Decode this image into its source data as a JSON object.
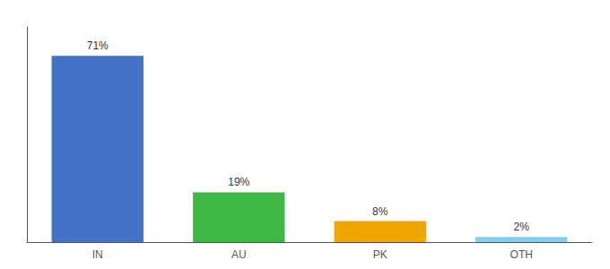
{
  "chart_data": {
    "type": "bar",
    "categories": [
      "IN",
      "AU",
      "PK",
      "OTH"
    ],
    "values": [
      71,
      19,
      8,
      2
    ],
    "value_labels": [
      "71%",
      "19%",
      "8%",
      "2%"
    ],
    "colors": [
      "#4472c4",
      "#3cb843",
      "#f0a500",
      "#87ceeb"
    ],
    "ylim": [
      0,
      82
    ],
    "yticks": [],
    "grid": false,
    "data_labels": true,
    "tick_labels": "x"
  }
}
